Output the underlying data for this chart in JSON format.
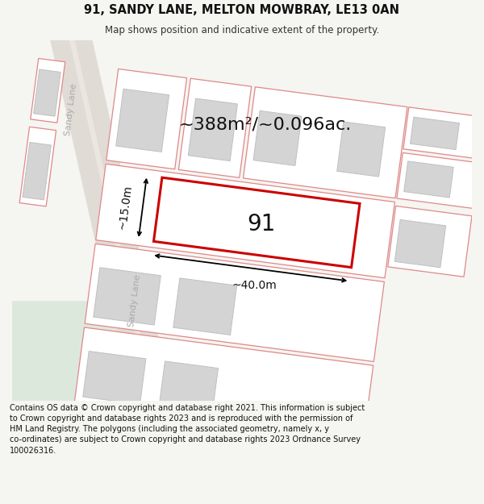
{
  "title_line1": "91, SANDY LANE, MELTON MOWBRAY, LE13 0AN",
  "title_line2": "Map shows position and indicative extent of the property.",
  "area_text": "~388m²/~0.096ac.",
  "property_number": "91",
  "dim_width": "~40.0m",
  "dim_height": "~15.0m",
  "road_label1": "Sandy Lane",
  "road_label2": "Sandy Lane",
  "footer_text": "Contains OS data © Crown copyright and database right 2021. This information is subject to Crown copyright and database rights 2023 and is reproduced with the permission of HM Land Registry. The polygons (including the associated geometry, namely x, y co-ordinates) are subject to Crown copyright and database rights 2023 Ordnance Survey 100026316.",
  "fig_width": 6.0,
  "fig_height": 6.25,
  "map_bg": "#ffffff",
  "road_fill": "#e0dbd4",
  "road_center": "#ebe6e0",
  "green_fill": "#dde8dd",
  "pink_edge": "#e08888",
  "pink_fill": "#ffffff",
  "gray_fill": "#d4d4d4",
  "gray_edge": "#c0c0c0",
  "prop_edge": "#cc0000",
  "prop_fill": "#ffffff",
  "text_dark": "#111111",
  "text_gray": "#aaaaaa",
  "header_bg": "#f5f5f2",
  "footer_bg": "#f5f5f2"
}
